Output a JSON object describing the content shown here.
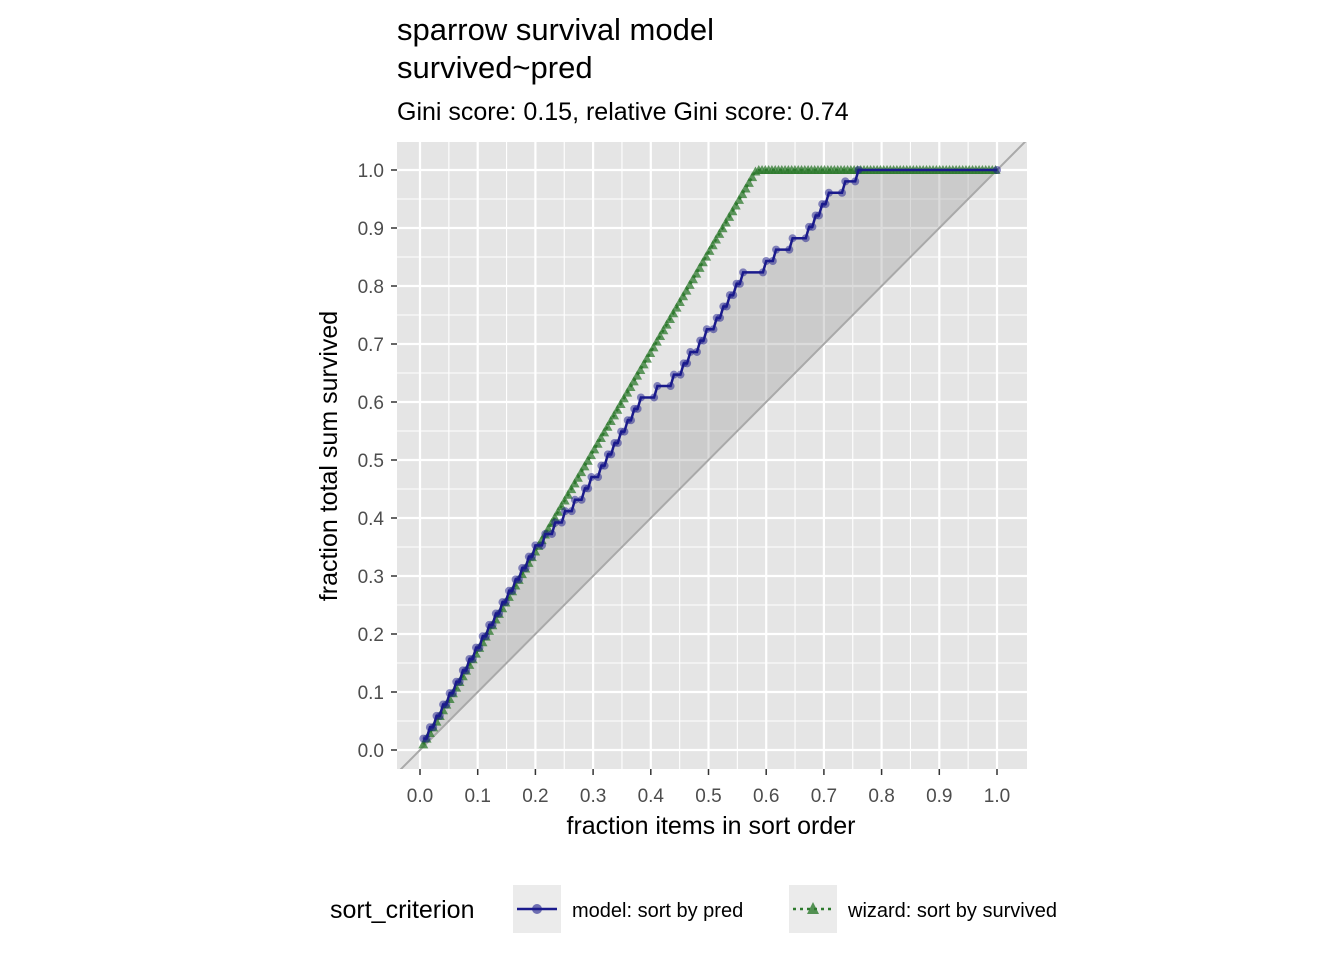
{
  "chart_data": {
    "type": "line",
    "title": "sparrow survival model\nsurvived~pred",
    "title_lines": [
      "sparrow survival model",
      "survived~pred"
    ],
    "subtitle": "Gini score: 0.15, relative Gini score: 0.74",
    "xlabel": "fraction items in sort order",
    "ylabel": "fraction total sum survived",
    "xlim": [
      0,
      1
    ],
    "ylim": [
      0,
      1
    ],
    "x_ticks": [
      "0.0",
      "0.1",
      "0.2",
      "0.3",
      "0.4",
      "0.5",
      "0.6",
      "0.7",
      "0.8",
      "0.9",
      "1.0"
    ],
    "y_ticks": [
      "0.0",
      "0.1",
      "0.2",
      "0.3",
      "0.4",
      "0.5",
      "0.6",
      "0.7",
      "0.8",
      "0.9",
      "1.0"
    ],
    "grid": true,
    "legend_position": "bottom",
    "legend_title": "sort_criterion",
    "reference_line": {
      "from": [
        0,
        0
      ],
      "to": [
        1,
        1
      ],
      "color": "#a9a9a9"
    },
    "shaded_region": "between model curve and diagonal",
    "series": [
      {
        "name": "model: sort by pred",
        "color": "#1a1a8c",
        "marker": "circle",
        "line_style": "solid",
        "points": [
          [
            0.0,
            0.0
          ],
          [
            0.0057,
            0.0196
          ],
          [
            0.0114,
            0.0196
          ],
          [
            0.0172,
            0.0392
          ],
          [
            0.0229,
            0.0392
          ],
          [
            0.0286,
            0.0588
          ],
          [
            0.0343,
            0.0588
          ],
          [
            0.04,
            0.0784
          ],
          [
            0.0457,
            0.0784
          ],
          [
            0.0514,
            0.098
          ],
          [
            0.0571,
            0.098
          ],
          [
            0.0629,
            0.1176
          ],
          [
            0.0686,
            0.1176
          ],
          [
            0.0743,
            0.1373
          ],
          [
            0.08,
            0.1373
          ],
          [
            0.0857,
            0.1569
          ],
          [
            0.0914,
            0.1569
          ],
          [
            0.0971,
            0.1765
          ],
          [
            0.1029,
            0.1765
          ],
          [
            0.1086,
            0.1961
          ],
          [
            0.1143,
            0.1961
          ],
          [
            0.12,
            0.2157
          ],
          [
            0.1257,
            0.2157
          ],
          [
            0.1314,
            0.2353
          ],
          [
            0.1371,
            0.2353
          ],
          [
            0.1429,
            0.2549
          ],
          [
            0.1486,
            0.2549
          ],
          [
            0.1543,
            0.2745
          ],
          [
            0.16,
            0.2745
          ],
          [
            0.1657,
            0.2941
          ],
          [
            0.1714,
            0.2941
          ],
          [
            0.1771,
            0.3137
          ],
          [
            0.1829,
            0.3137
          ],
          [
            0.1886,
            0.3333
          ],
          [
            0.1943,
            0.3333
          ],
          [
            0.2,
            0.3529
          ],
          [
            0.2114,
            0.3529
          ],
          [
            0.2171,
            0.3725
          ],
          [
            0.2286,
            0.3725
          ],
          [
            0.2343,
            0.3922
          ],
          [
            0.2457,
            0.3922
          ],
          [
            0.2514,
            0.4118
          ],
          [
            0.2629,
            0.4118
          ],
          [
            0.2686,
            0.4314
          ],
          [
            0.28,
            0.4314
          ],
          [
            0.2857,
            0.451
          ],
          [
            0.2914,
            0.451
          ],
          [
            0.2971,
            0.4706
          ],
          [
            0.3086,
            0.4706
          ],
          [
            0.3143,
            0.4902
          ],
          [
            0.32,
            0.4902
          ],
          [
            0.3257,
            0.5098
          ],
          [
            0.3314,
            0.5098
          ],
          [
            0.3371,
            0.5294
          ],
          [
            0.3429,
            0.5294
          ],
          [
            0.3486,
            0.549
          ],
          [
            0.3543,
            0.549
          ],
          [
            0.36,
            0.5686
          ],
          [
            0.3657,
            0.5686
          ],
          [
            0.3714,
            0.5882
          ],
          [
            0.3771,
            0.5882
          ],
          [
            0.3829,
            0.6078
          ],
          [
            0.4057,
            0.6078
          ],
          [
            0.4114,
            0.6275
          ],
          [
            0.4343,
            0.6275
          ],
          [
            0.44,
            0.6471
          ],
          [
            0.4514,
            0.6471
          ],
          [
            0.4571,
            0.6667
          ],
          [
            0.4629,
            0.6667
          ],
          [
            0.4686,
            0.6863
          ],
          [
            0.48,
            0.6863
          ],
          [
            0.4857,
            0.7059
          ],
          [
            0.4914,
            0.7059
          ],
          [
            0.4971,
            0.7255
          ],
          [
            0.5086,
            0.7255
          ],
          [
            0.5143,
            0.7451
          ],
          [
            0.52,
            0.7451
          ],
          [
            0.5257,
            0.7647
          ],
          [
            0.5314,
            0.7647
          ],
          [
            0.5371,
            0.7843
          ],
          [
            0.5429,
            0.7843
          ],
          [
            0.5486,
            0.8039
          ],
          [
            0.5543,
            0.8039
          ],
          [
            0.56,
            0.8235
          ],
          [
            0.5943,
            0.8235
          ],
          [
            0.6,
            0.8431
          ],
          [
            0.6114,
            0.8431
          ],
          [
            0.6171,
            0.8627
          ],
          [
            0.64,
            0.8627
          ],
          [
            0.6457,
            0.8824
          ],
          [
            0.6686,
            0.8824
          ],
          [
            0.6743,
            0.902
          ],
          [
            0.68,
            0.902
          ],
          [
            0.6857,
            0.9216
          ],
          [
            0.6914,
            0.9216
          ],
          [
            0.6971,
            0.9412
          ],
          [
            0.7029,
            0.9412
          ],
          [
            0.7086,
            0.9608
          ],
          [
            0.7314,
            0.9608
          ],
          [
            0.7371,
            0.9804
          ],
          [
            0.7543,
            0.9804
          ],
          [
            0.76,
            1.0
          ],
          [
            1.0,
            1.0
          ]
        ]
      },
      {
        "name": "wizard: sort by survived",
        "color": "#2d7a2d",
        "marker": "triangle",
        "line_style": "dotted",
        "x_step": 0.0057,
        "rise_until": 0.5829,
        "plateau": 1.0
      }
    ]
  }
}
